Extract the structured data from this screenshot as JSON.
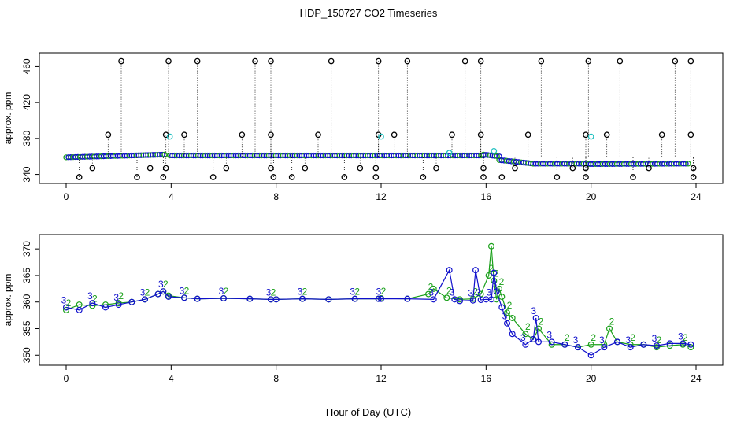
{
  "title": "HDP_150727  CO2 Timeseries",
  "xlabel": "Hour of Day (UTC)",
  "colors": {
    "series2": "#1aa01a",
    "series3": "#1010cc",
    "other": "#000000",
    "cyan": "#20c0c0"
  },
  "chart_data": [
    {
      "type": "scatter",
      "panel": "top",
      "ylabel": "approx. ppm",
      "xlim": [
        0,
        24
      ],
      "ylim": [
        337,
        470
      ],
      "xticks": [
        0,
        4,
        8,
        12,
        16,
        20,
        24
      ],
      "yticks": [
        340,
        380,
        420,
        460
      ],
      "series": [
        {
          "name": "",
          "points": [
            [
              2.1,
              466
            ],
            [
              3.9,
              466
            ],
            [
              5.0,
              466
            ],
            [
              7.2,
              466
            ],
            [
              7.8,
              466
            ],
            [
              10.1,
              466
            ],
            [
              11.9,
              466
            ],
            [
              13.0,
              466
            ],
            [
              15.2,
              466
            ],
            [
              15.8,
              466
            ],
            [
              18.1,
              466
            ],
            [
              19.9,
              466
            ],
            [
              21.1,
              466
            ],
            [
              23.2,
              466
            ],
            [
              23.8,
              466
            ],
            [
              1.6,
              384
            ],
            [
              3.8,
              384
            ],
            [
              4.5,
              384
            ],
            [
              6.7,
              384
            ],
            [
              7.8,
              384
            ],
            [
              9.6,
              384
            ],
            [
              11.9,
              384
            ],
            [
              12.5,
              384
            ],
            [
              14.7,
              384
            ],
            [
              15.8,
              384
            ],
            [
              17.6,
              384
            ],
            [
              19.8,
              384
            ],
            [
              20.6,
              384
            ],
            [
              22.7,
              384
            ],
            [
              23.8,
              384
            ],
            [
              1.0,
              347
            ],
            [
              3.2,
              347
            ],
            [
              3.8,
              347
            ],
            [
              6.1,
              347
            ],
            [
              7.8,
              347
            ],
            [
              9.1,
              347
            ],
            [
              11.2,
              347
            ],
            [
              11.8,
              347
            ],
            [
              14.1,
              347
            ],
            [
              15.9,
              347
            ],
            [
              17.1,
              347
            ],
            [
              19.3,
              347
            ],
            [
              19.8,
              347
            ],
            [
              22.2,
              347
            ],
            [
              23.9,
              347
            ],
            [
              0.5,
              337
            ],
            [
              2.7,
              337
            ],
            [
              3.7,
              337
            ],
            [
              5.6,
              337
            ],
            [
              7.9,
              337
            ],
            [
              8.6,
              337
            ],
            [
              10.6,
              337
            ],
            [
              11.8,
              337
            ],
            [
              13.6,
              337
            ],
            [
              15.9,
              337
            ],
            [
              16.6,
              337
            ],
            [
              18.7,
              337
            ],
            [
              19.8,
              337
            ],
            [
              21.6,
              337
            ],
            [
              23.9,
              337
            ]
          ]
        },
        {
          "name": "",
          "points": [
            [
              3.95,
              382
            ],
            [
              12.0,
              382
            ],
            [
              20.0,
              382
            ],
            [
              16.3,
              366
            ],
            [
              14.6,
              364
            ]
          ]
        }
      ]
    },
    {
      "type": "line",
      "panel": "bottom",
      "ylabel": "approx. ppm",
      "xlim": [
        0,
        24
      ],
      "ylim": [
        349.3,
        371.8
      ],
      "xticks": [
        0,
        4,
        8,
        12,
        16,
        20,
        24
      ],
      "yticks": [
        350,
        355,
        360,
        365,
        370
      ],
      "series": [
        {
          "name": "2",
          "marker": "2",
          "x": [
            0,
            0.5,
            1,
            1.5,
            2,
            2.5,
            3,
            3.5,
            3.7,
            3.9,
            4.5,
            5,
            6,
            7,
            7.8,
            8,
            9,
            10,
            11,
            11.9,
            12,
            13,
            13.8,
            14,
            14.5,
            15,
            15.5,
            15.8,
            16.1,
            16.2,
            16.3,
            16.4,
            16.5,
            16.6,
            16.8,
            17,
            17.5,
            17.8,
            18,
            18.5,
            19,
            19.5,
            20,
            20.5,
            20.7,
            21,
            21.5,
            22,
            22.5,
            23,
            23.5,
            23.8
          ],
          "values": [
            358.5,
            359.5,
            359.3,
            359.5,
            359.8,
            360,
            360.5,
            361.5,
            362,
            361.2,
            360.8,
            360.6,
            360.7,
            360.6,
            360.5,
            360.5,
            360.6,
            360.5,
            360.6,
            360.6,
            360.7,
            360.6,
            361.5,
            362.5,
            360.8,
            360.5,
            360.6,
            361.5,
            365,
            370.5,
            364,
            360.5,
            362.5,
            361,
            358,
            357,
            354,
            353,
            355,
            352,
            352,
            351.5,
            352,
            352,
            355,
            352.5,
            352,
            352,
            351.5,
            351.8,
            352,
            351.5
          ]
        },
        {
          "name": "3",
          "marker": "3",
          "x": [
            0,
            0.5,
            1,
            1.5,
            2,
            2.5,
            3,
            3.5,
            3.7,
            3.9,
            4.5,
            5,
            6,
            7,
            7.8,
            8,
            9,
            10,
            11,
            11.9,
            12,
            13,
            14,
            14.6,
            14.8,
            15,
            15.5,
            15.6,
            15.8,
            16,
            16.2,
            16.3,
            16.4,
            16.6,
            16.8,
            17,
            17.5,
            17.8,
            17.9,
            18,
            18.5,
            19,
            19.5,
            20,
            20.5,
            21,
            21.5,
            22,
            22.5,
            23,
            23.5,
            23.8
          ],
          "values": [
            359,
            358.5,
            359.8,
            359,
            359.5,
            360,
            360.5,
            361.5,
            362,
            361,
            360.8,
            360.6,
            360.7,
            360.6,
            360.5,
            360.5,
            360.6,
            360.5,
            360.6,
            360.6,
            360.6,
            360.6,
            360.5,
            366,
            360.5,
            360.2,
            360.3,
            366,
            360.4,
            360.5,
            360.5,
            365.5,
            362,
            359,
            356,
            354,
            352,
            353,
            357,
            352.5,
            352.5,
            352,
            351.5,
            350,
            351.5,
            352.5,
            351.5,
            352,
            351.8,
            352.2,
            352.2,
            352
          ]
        }
      ]
    }
  ]
}
